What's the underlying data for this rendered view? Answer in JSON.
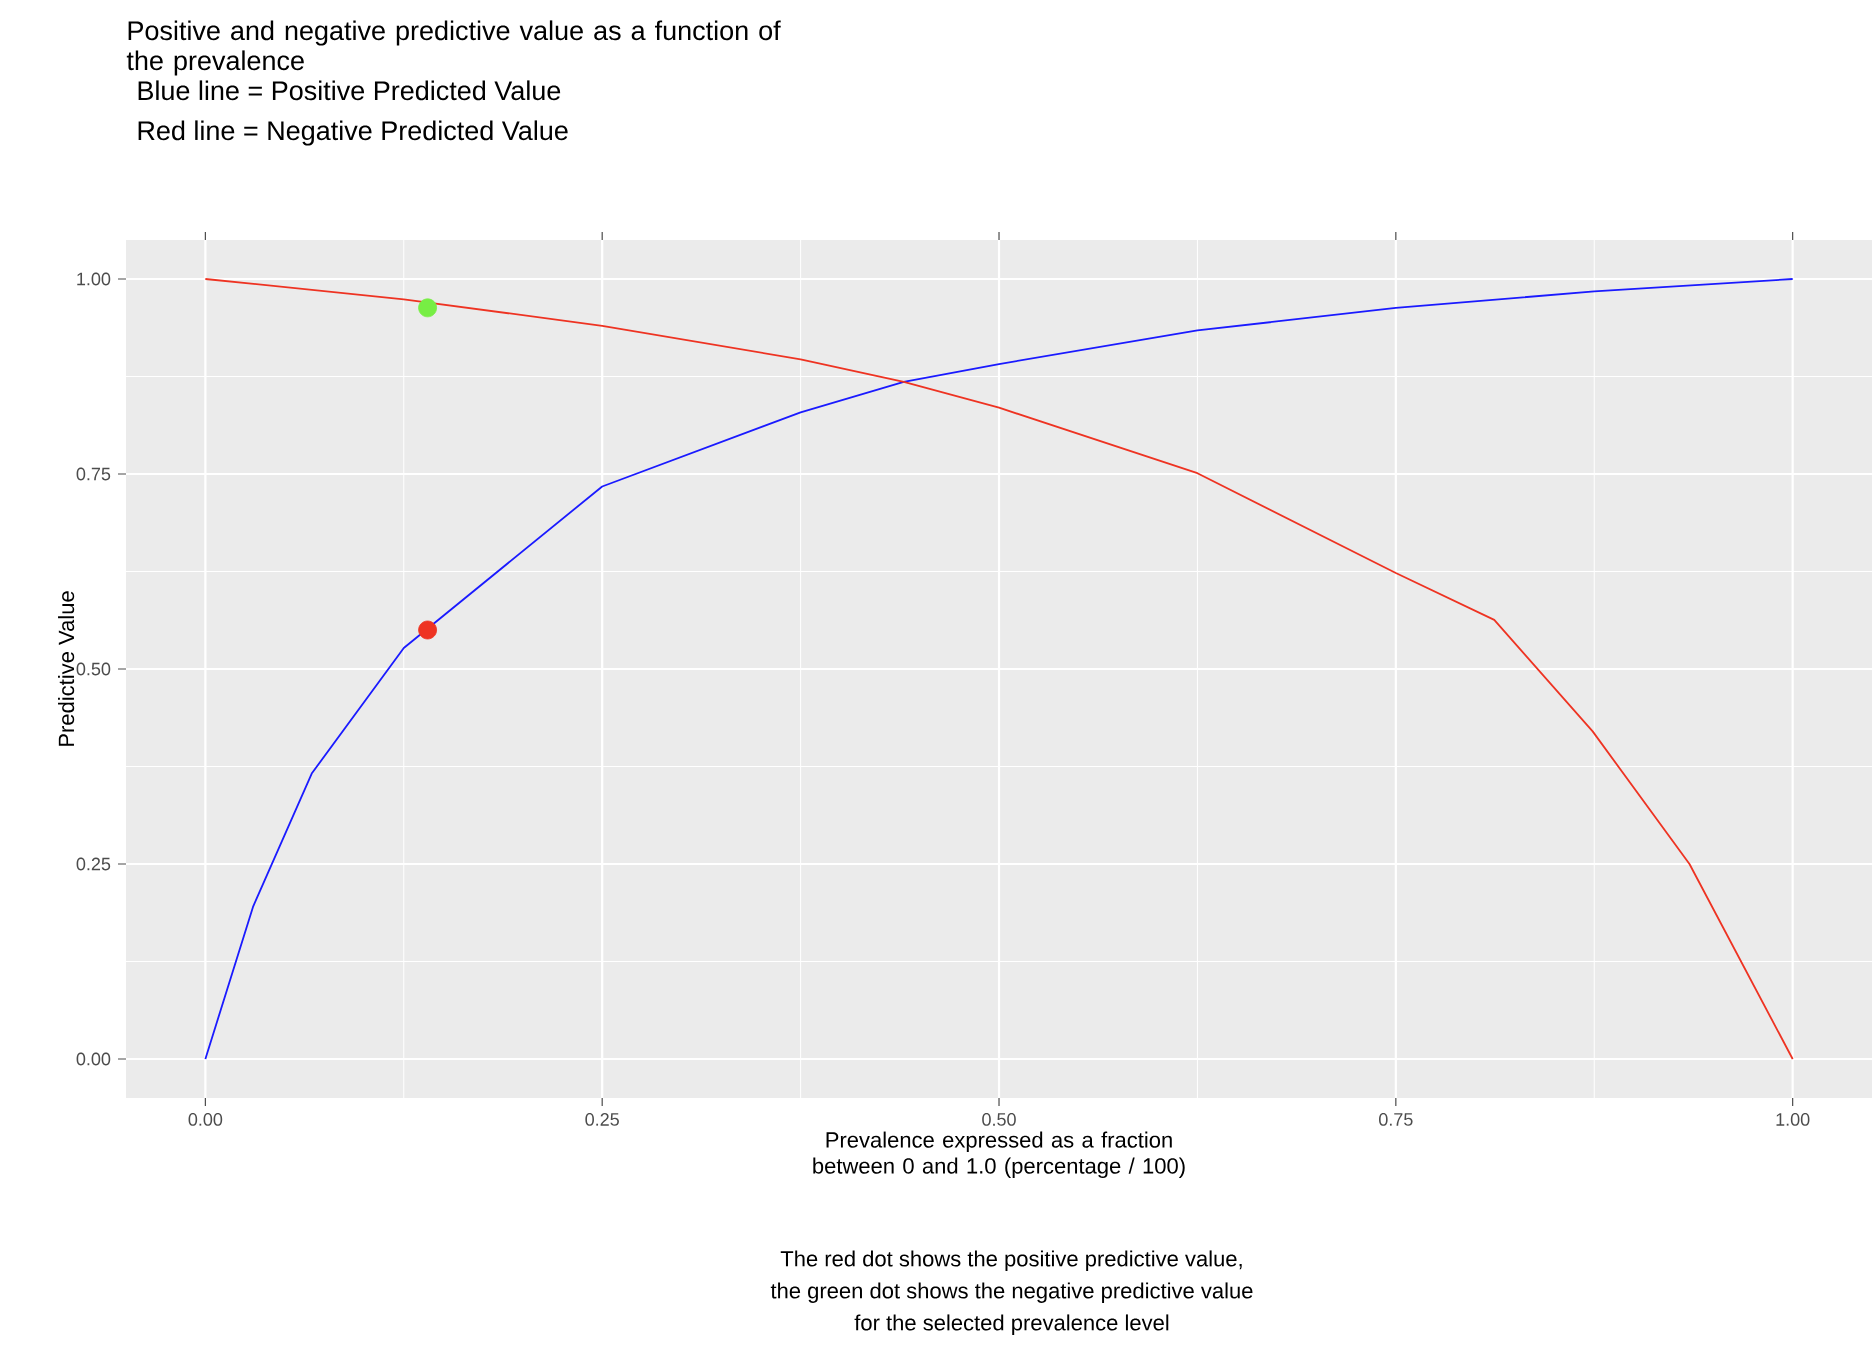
{
  "chart_data": {
    "type": "line",
    "title": "Positive and negative predictive value as a function of the prevalence",
    "xlabel": "Prevalence expressed as a fraction between 0 and 1.0 (percentage / 100)",
    "ylabel": "Predictive Value",
    "annotations": [
      "Blue line = Positive Predicted Value",
      "Red line = Negative Predicted Value",
      "The red dot shows the positive predictive value,",
      "the green dot shows the negative predictive value",
      "for the selected prevalence level"
    ],
    "xlim": [
      -0.05,
      1.05
    ],
    "ylim": [
      -0.05,
      1.05
    ],
    "xticks": [
      {
        "value": 0,
        "label": "0.00"
      },
      {
        "value": 0.25,
        "label": "0.25"
      },
      {
        "value": 0.5,
        "label": "0.50"
      },
      {
        "value": 0.75,
        "label": "0.75"
      },
      {
        "value": 1,
        "label": "1.00"
      }
    ],
    "yticks": [
      {
        "value": 0,
        "label": "0.00"
      },
      {
        "value": 0.25,
        "label": "0.25"
      },
      {
        "value": 0.5,
        "label": "0.50"
      },
      {
        "value": 0.75,
        "label": "0.75"
      },
      {
        "value": 1,
        "label": "1.00"
      }
    ],
    "grid": true,
    "series": [
      {
        "color": "#1a1aff",
        "x": [
          0,
          0.03,
          0.067,
          0.125,
          0.25,
          0.375,
          0.44,
          0.5,
          0.625,
          0.75,
          0.875,
          1
        ],
        "values": [
          0,
          0.195,
          0.366,
          0.527,
          0.734,
          0.829,
          0.868,
          0.891,
          0.934,
          0.963,
          0.984,
          1
        ]
      },
      {
        "color": "#ee3322",
        "x": [
          0,
          0.125,
          0.25,
          0.375,
          0.44,
          0.5,
          0.625,
          0.75,
          0.812,
          0.874,
          0.935,
          1
        ],
        "values": [
          1,
          0.974,
          0.94,
          0.897,
          0.868,
          0.835,
          0.751,
          0.623,
          0.563,
          0.42,
          0.25,
          0
        ]
      },
      {
        "type": "scatter",
        "marker": "circle",
        "color": "#77ee44",
        "x": [
          0.14
        ],
        "values": [
          0.963
        ]
      },
      {
        "type": "scatter",
        "marker": "circle",
        "color": "#ee3322",
        "x": [
          0.14
        ],
        "values": [
          0.55
        ]
      }
    ]
  }
}
